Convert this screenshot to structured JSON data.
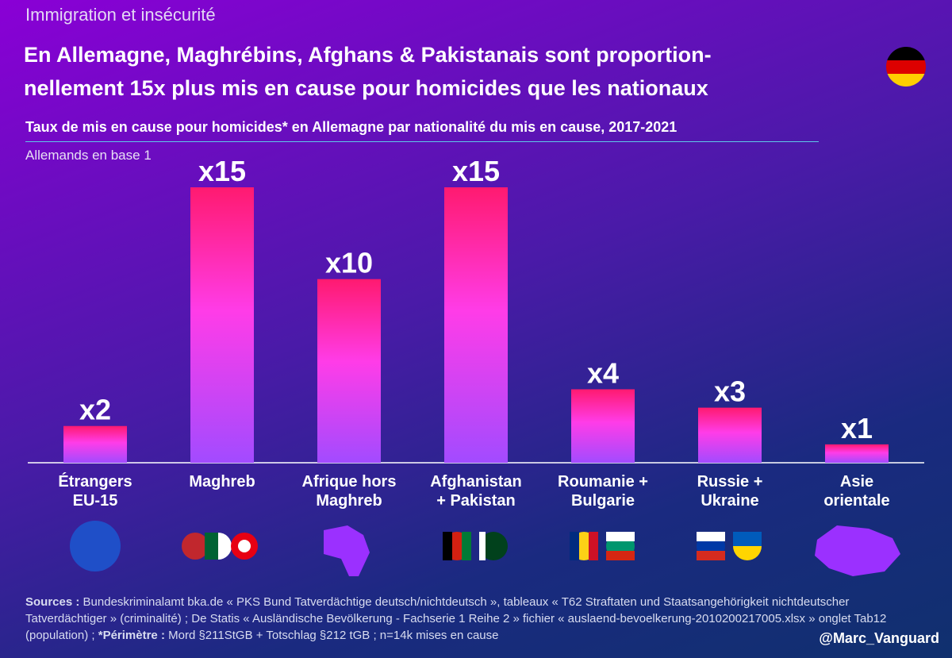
{
  "chart_data": {
    "type": "bar",
    "kicker": "Immigration et insécurité",
    "title": "En Allemagne, Maghrébins, Afghans & Pakistanais sont proportion-\nnellement 15x plus mis en cause pour homicides que les nationaux",
    "subtitle": "Taux de mis en cause pour homicides* en Allemagne par nationalité du mis en cause, 2017-2021",
    "y_label": "Allemands en base 1",
    "categories": [
      "Étrangers\nEU-15",
      "Maghreb",
      "Afrique hors\nMaghreb",
      "Afghanistan\n+ Pakistan",
      "Roumanie +\nBulgarie",
      "Russie +\nUkraine",
      "Asie\norientale"
    ],
    "values": [
      2,
      15,
      10,
      15,
      4,
      3,
      1
    ],
    "value_labels": [
      "x2",
      "x15",
      "x10",
      "x15",
      "x4",
      "x3",
      "x1"
    ],
    "color_top": "#ff1a70",
    "color_bottom": "#a24bff",
    "ylim": [
      0,
      15
    ],
    "sources_label": "Sources :",
    "sources_text": "Bundeskriminalamt bka.de « PKS Bund Tatverdächtige deutsch/nichtdeutsch », tableaux « T62 Straftaten und Staatsangehörigkeit nichtdeutscher Tatverdächtiger » (criminalité) ; De Statis « Ausländische Bevölkerung - Fachserie 1 Reihe 2 » fichier « auslaend-bevoelkerung-2010200217005.xlsx » onglet Tab12 (population) ;",
    "perimetre_label": "*Périmètre :",
    "perimetre_text": "Mord §211StGB + Totschlag §212 tGB ; n=14k mises en cause",
    "handle": "@Marc_Vanguard"
  }
}
